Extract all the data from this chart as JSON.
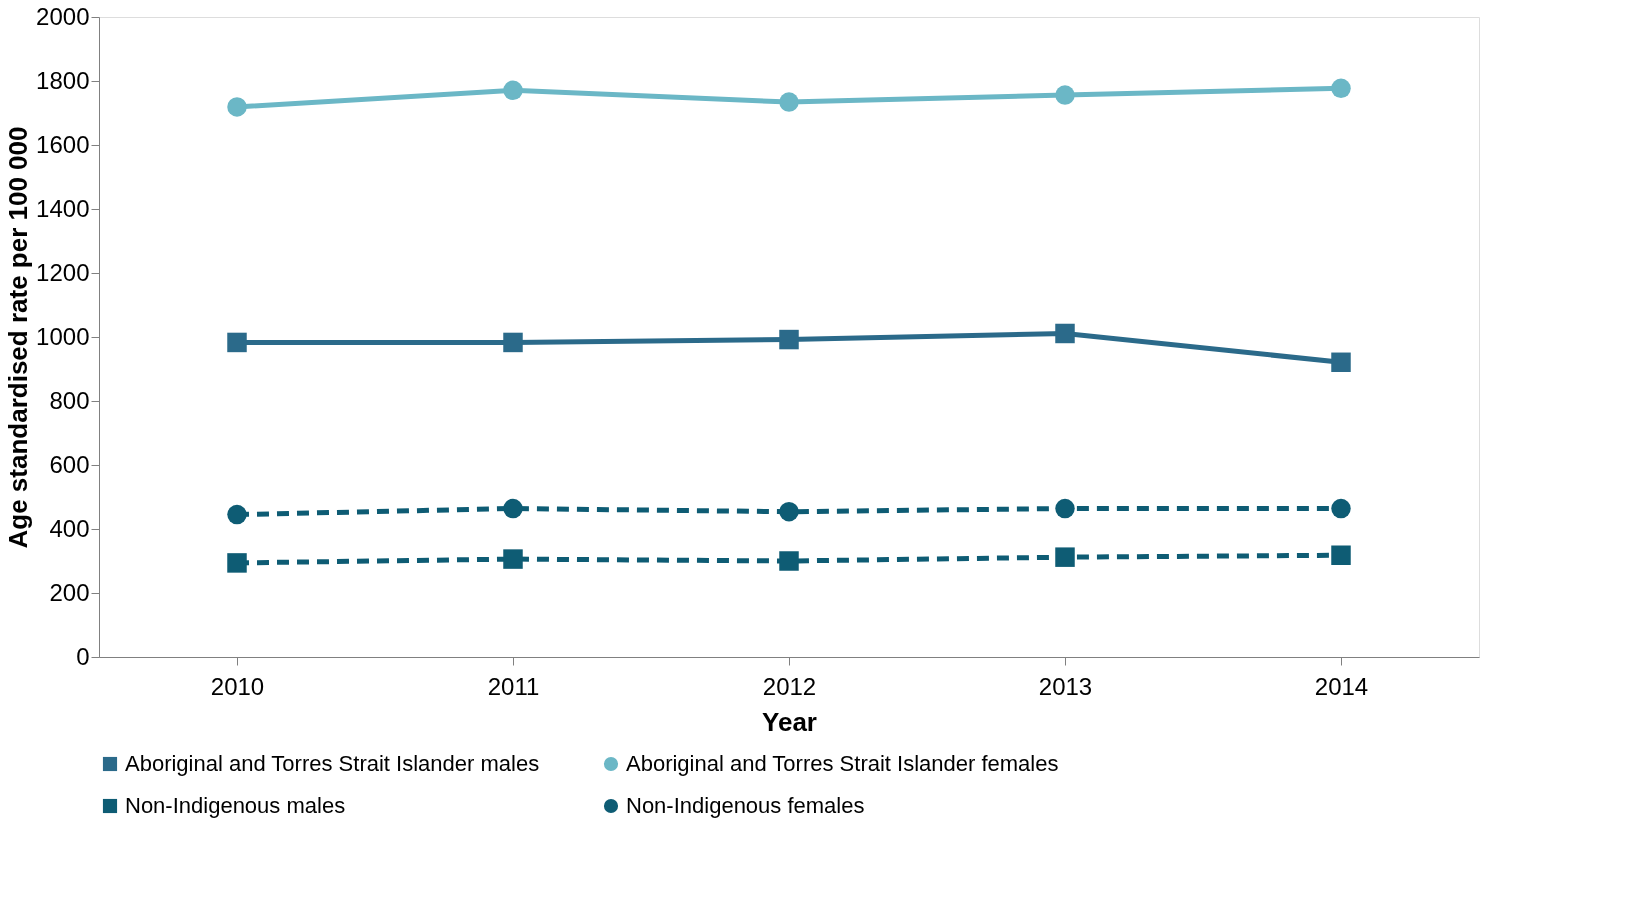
{
  "chart_data": {
    "type": "line",
    "xlabel": "Year",
    "ylabel": "Age standardised rate per 100 000",
    "categories": [
      "2010",
      "2011",
      "2012",
      "2013",
      "2014"
    ],
    "series": [
      {
        "name": "Aboriginal and Torres Strait Islander males",
        "color": "#2b6a8a",
        "marker": "square",
        "line_style": "solid",
        "values": [
          983,
          983,
          992,
          1011,
          921
        ]
      },
      {
        "name": "Aboriginal and Torres Strait Islander females",
        "color": "#6bb7c6",
        "marker": "circle",
        "line_style": "solid",
        "values": [
          1719,
          1771,
          1734,
          1756,
          1777
        ]
      },
      {
        "name": "Non-Indigenous males",
        "color": "#0e5c74",
        "marker": "square",
        "line_style": "dashed",
        "values": [
          294,
          306,
          300,
          312,
          318
        ]
      },
      {
        "name": "Non-Indigenous females",
        "color": "#0e5c74",
        "marker": "circle",
        "line_style": "dashed",
        "values": [
          445,
          464,
          454,
          464,
          464
        ]
      }
    ],
    "ylim": [
      0,
      2000
    ],
    "yticks": [
      0,
      200,
      400,
      600,
      800,
      1000,
      1200,
      1400,
      1600,
      1800,
      2000
    ],
    "grid": false,
    "legend": "bottom"
  }
}
